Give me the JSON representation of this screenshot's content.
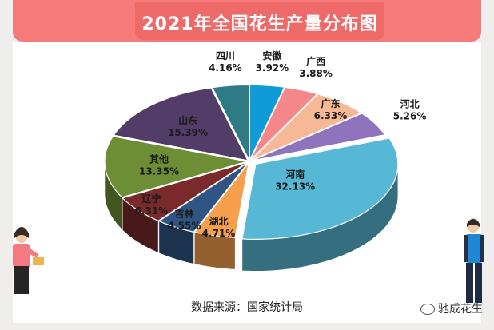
{
  "header": {
    "title": "2021年全国花生产量分布图"
  },
  "footer": {
    "source": "数据来源：国家统计局"
  },
  "watermark": {
    "text": "驰成花生",
    "icon": "wechat-icon"
  },
  "colors": {
    "banner": "#f47b7a",
    "title_box": "#ee6a68"
  },
  "chart_data": {
    "type": "pie",
    "style": "3d-exploded",
    "title": "2021年全国花生产量分布图",
    "categories": [
      "安徽",
      "广西",
      "广东",
      "河北",
      "河南",
      "湖北",
      "吉林",
      "辽宁",
      "其他",
      "山东",
      "四川"
    ],
    "values": [
      3.92,
      3.88,
      6.33,
      5.26,
      32.13,
      4.71,
      4.55,
      6.31,
      13.35,
      15.39,
      4.16
    ],
    "labels": [
      "3.92%",
      "3.88%",
      "6.33%",
      "5.26%",
      "32.13%",
      "4.71%",
      "4.55%",
      "6.31%",
      "13.35%",
      "15.39%",
      "4.16%"
    ],
    "colors": [
      "#0f9bd8",
      "#f5868a",
      "#f7b896",
      "#8f74bd",
      "#56b8d4",
      "#f6a04e",
      "#2f5584",
      "#7a2a2a",
      "#6d8e34",
      "#523c68",
      "#2e7b85"
    ],
    "unit": "%"
  }
}
